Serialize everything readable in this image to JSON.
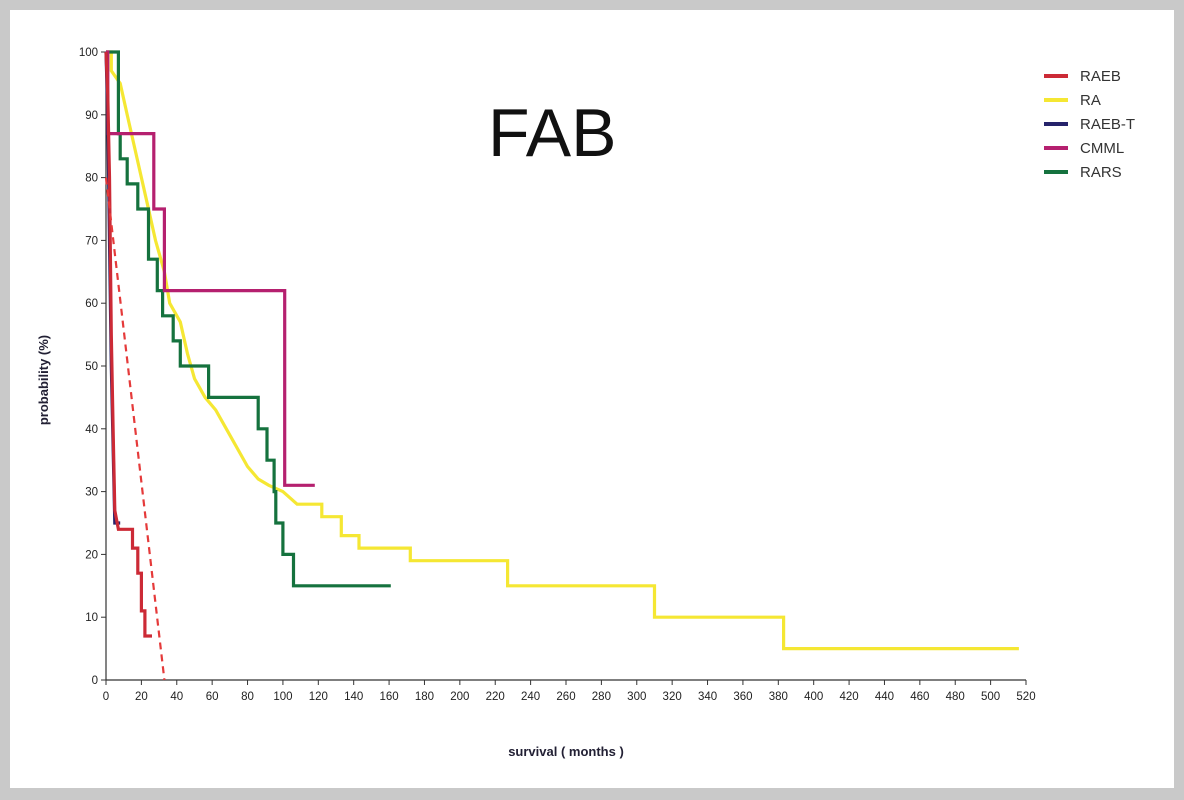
{
  "chart_data": {
    "type": "line",
    "title": "FAB",
    "xlabel": "survival ( months )",
    "ylabel": "probability (%)",
    "xlim": [
      0,
      520
    ],
    "ylim": [
      0,
      100
    ],
    "xticks": [
      0,
      20,
      40,
      60,
      80,
      100,
      120,
      140,
      160,
      180,
      200,
      220,
      240,
      260,
      280,
      300,
      320,
      340,
      360,
      380,
      400,
      420,
      440,
      460,
      480,
      500,
      520
    ],
    "yticks": [
      0,
      10,
      20,
      30,
      40,
      50,
      60,
      70,
      80,
      90,
      100
    ],
    "legend_position": "top-right",
    "grid": false,
    "step": true,
    "series": [
      {
        "name": "RAEB",
        "color": "#cc2a36",
        "points": [
          [
            0,
            100
          ],
          [
            1,
            93
          ],
          [
            2,
            80
          ],
          [
            3,
            55
          ],
          [
            4,
            40
          ],
          [
            5,
            27
          ],
          [
            7,
            24
          ],
          [
            15,
            24
          ],
          [
            15,
            21
          ],
          [
            18,
            21
          ],
          [
            18,
            17
          ],
          [
            20,
            17
          ],
          [
            20,
            11
          ],
          [
            22,
            11
          ],
          [
            22,
            7
          ],
          [
            26,
            7
          ]
        ]
      },
      {
        "name": "RA",
        "color": "#f5e733",
        "points": [
          [
            0,
            100
          ],
          [
            3,
            100
          ],
          [
            3,
            97
          ],
          [
            8,
            95
          ],
          [
            12,
            90
          ],
          [
            16,
            85
          ],
          [
            20,
            80
          ],
          [
            24,
            75
          ],
          [
            28,
            70
          ],
          [
            33,
            65
          ],
          [
            36,
            60
          ],
          [
            42,
            57
          ],
          [
            46,
            52
          ],
          [
            50,
            48
          ],
          [
            56,
            45
          ],
          [
            62,
            43
          ],
          [
            68,
            40
          ],
          [
            74,
            37
          ],
          [
            80,
            34
          ],
          [
            86,
            32
          ],
          [
            92,
            31
          ],
          [
            100,
            30
          ],
          [
            108,
            28
          ],
          [
            122,
            28
          ],
          [
            122,
            26
          ],
          [
            133,
            26
          ],
          [
            133,
            23
          ],
          [
            143,
            23
          ],
          [
            143,
            21
          ],
          [
            172,
            21
          ],
          [
            172,
            19
          ],
          [
            227,
            19
          ],
          [
            227,
            15
          ],
          [
            310,
            15
          ],
          [
            310,
            10
          ],
          [
            383,
            10
          ],
          [
            383,
            5
          ],
          [
            516,
            5
          ]
        ]
      },
      {
        "name": "RAEB-T",
        "color": "#26236b",
        "points": [
          [
            0,
            100
          ],
          [
            1,
            90
          ],
          [
            2,
            70
          ],
          [
            3,
            50
          ],
          [
            5,
            25
          ],
          [
            8,
            25
          ]
        ]
      },
      {
        "name": "CMML",
        "color": "#b5206f",
        "points": [
          [
            0,
            100
          ],
          [
            1,
            100
          ],
          [
            1,
            87
          ],
          [
            27,
            87
          ],
          [
            27,
            75
          ],
          [
            33,
            75
          ],
          [
            33,
            62
          ],
          [
            101,
            62
          ],
          [
            101,
            31
          ],
          [
            118,
            31
          ]
        ]
      },
      {
        "name": "RARS",
        "color": "#15723e",
        "points": [
          [
            0,
            100
          ],
          [
            7,
            100
          ],
          [
            7,
            87
          ],
          [
            8,
            87
          ],
          [
            8,
            83
          ],
          [
            12,
            83
          ],
          [
            12,
            79
          ],
          [
            18,
            79
          ],
          [
            18,
            75
          ],
          [
            24,
            75
          ],
          [
            24,
            67
          ],
          [
            29,
            67
          ],
          [
            29,
            62
          ],
          [
            32,
            62
          ],
          [
            32,
            58
          ],
          [
            38,
            58
          ],
          [
            38,
            54
          ],
          [
            42,
            54
          ],
          [
            42,
            50
          ],
          [
            58,
            50
          ],
          [
            58,
            45
          ],
          [
            86,
            45
          ],
          [
            86,
            40
          ],
          [
            91,
            40
          ],
          [
            91,
            35
          ],
          [
            95,
            35
          ],
          [
            95,
            30
          ],
          [
            96,
            30
          ],
          [
            96,
            25
          ],
          [
            100,
            25
          ],
          [
            100,
            20
          ],
          [
            106,
            20
          ],
          [
            106,
            15
          ],
          [
            161,
            15
          ]
        ]
      }
    ],
    "reference_line": {
      "color": "#e53a3a",
      "dashed": true,
      "points": [
        [
          0,
          80
        ],
        [
          33,
          0
        ]
      ]
    }
  }
}
